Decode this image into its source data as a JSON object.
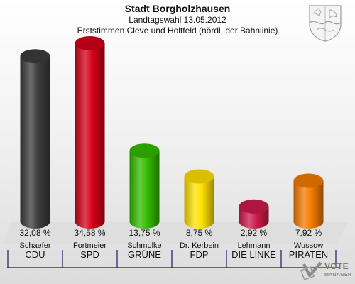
{
  "header": {
    "title": "Stadt Borgholzhausen",
    "subtitle": "Landtagswahl 13.05.2012",
    "subtitle2": "Erststimmen Cleve und Holtfeld (nördl. der Bahnlinie)"
  },
  "chart_data": {
    "type": "bar",
    "candidates": [
      "Schaefer",
      "Fortmeier",
      "Schmolke",
      "Dr. Kerbein",
      "Lehmann",
      "Wussow"
    ],
    "categories": [
      "CDU",
      "SPD",
      "GRÜNE",
      "FDP",
      "DIE LINKE",
      "PIRATEN"
    ],
    "values": [
      32.08,
      34.58,
      13.75,
      8.75,
      2.92,
      7.92
    ],
    "value_labels": [
      "32,08 %",
      "34,58 %",
      "13,75 %",
      "8,75 %",
      "2,92 %",
      "7,92 %"
    ],
    "colors": [
      "#3c3c3c",
      "#d40019",
      "#33bb00",
      "#ffe100",
      "#cc1a4a",
      "#f47b00"
    ],
    "ylim": [
      0,
      35
    ]
  },
  "logo": {
    "line1": "VOTE",
    "line2": "MANAGER"
  }
}
